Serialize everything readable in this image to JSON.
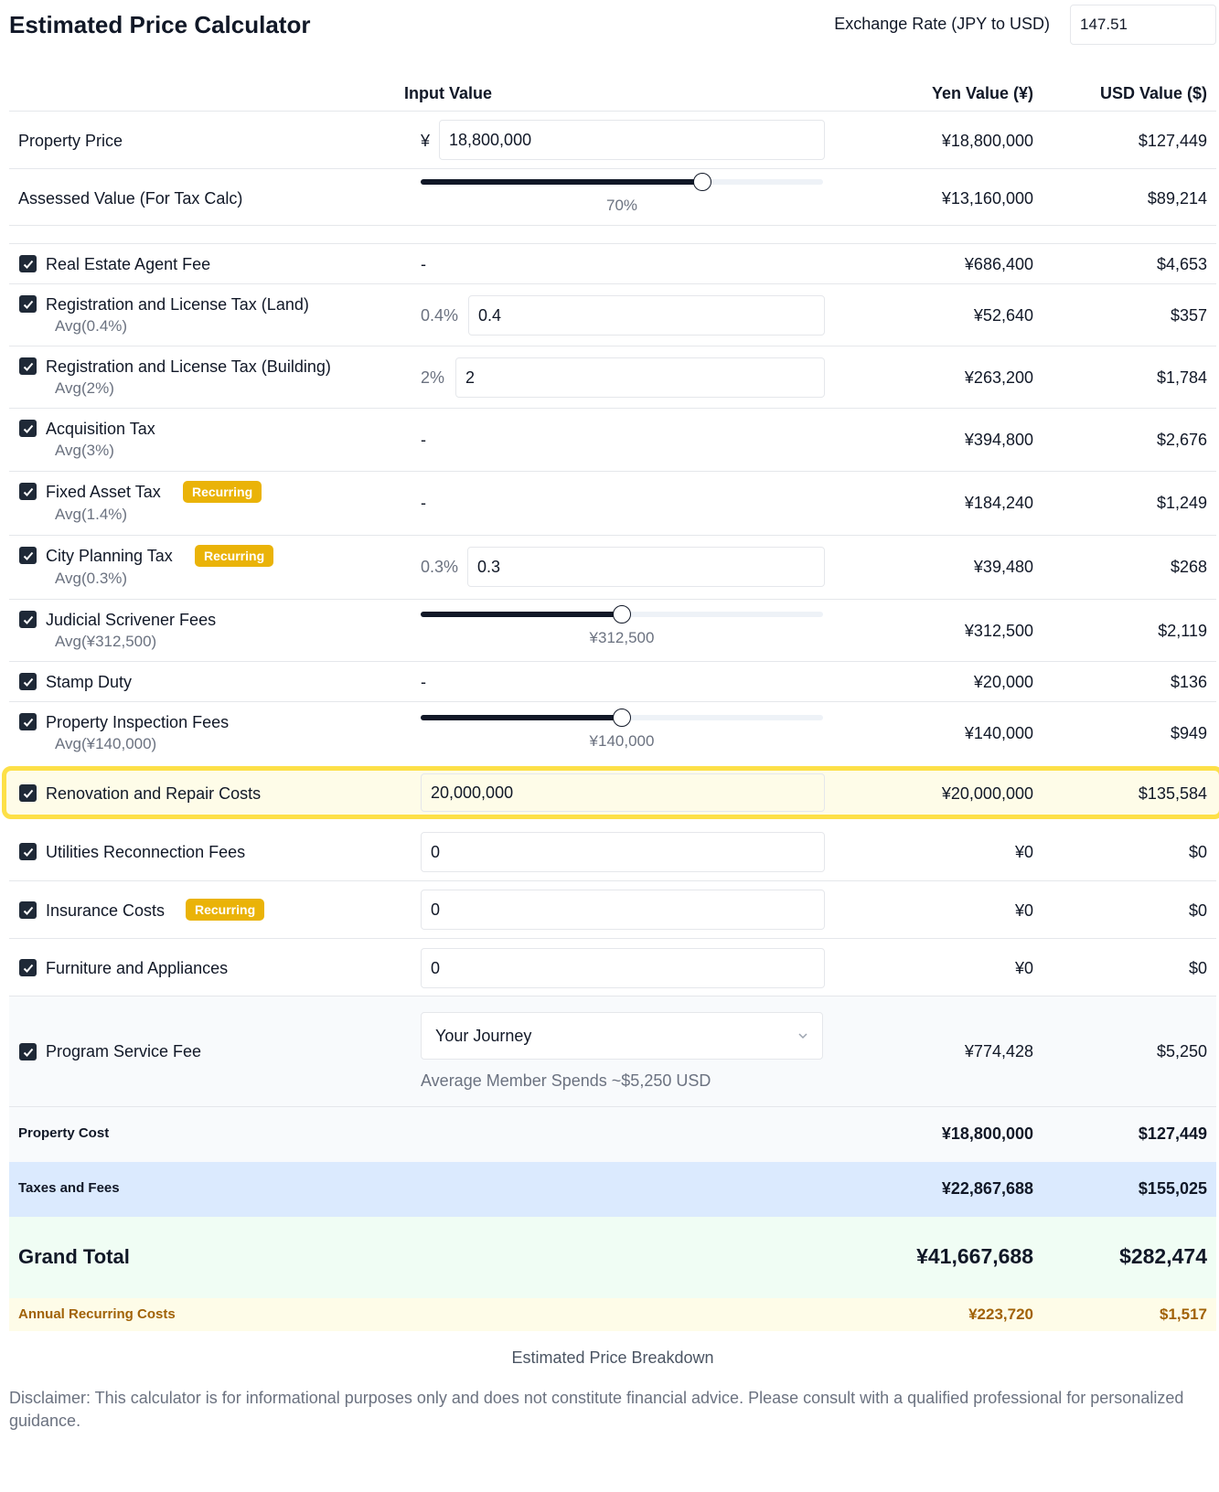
{
  "header": {
    "title": "Estimated Price Calculator",
    "exchange_label": "Exchange Rate (JPY to USD)",
    "exchange_value": "147.51"
  },
  "columns": {
    "input": "Input Value",
    "yen": "Yen Value (¥)",
    "usd": "USD Value ($)"
  },
  "property_price": {
    "label": "Property Price",
    "prefix": "¥",
    "input": "18,800,000",
    "yen": "¥18,800,000",
    "usd": "$127,449"
  },
  "assessed_value": {
    "label": "Assessed Value (For Tax Calc)",
    "slider_caption": "70%",
    "slider_fraction": 0.7,
    "yen": "¥13,160,000",
    "usd": "$89,214"
  },
  "items": {
    "agent_fee": {
      "label": "Real Estate Agent Fee",
      "input": "-",
      "yen": "¥686,400",
      "usd": "$4,653"
    },
    "reg_land": {
      "label": "Registration and License Tax (Land)",
      "avg": "Avg(0.4%)",
      "pct": "0.4%",
      "input": "0.4",
      "yen": "¥52,640",
      "usd": "$357"
    },
    "reg_building": {
      "label": "Registration and License Tax (Building)",
      "avg": "Avg(2%)",
      "pct": "2%",
      "input": "2",
      "yen": "¥263,200",
      "usd": "$1,784"
    },
    "acq_tax": {
      "label": "Acquisition Tax",
      "avg": "Avg(3%)",
      "input": "-",
      "yen": "¥394,800",
      "usd": "$2,676"
    },
    "fixed_asset": {
      "label": "Fixed Asset Tax",
      "badge": "Recurring",
      "avg": "Avg(1.4%)",
      "input": "-",
      "yen": "¥184,240",
      "usd": "$1,249"
    },
    "city_planning": {
      "label": "City Planning Tax",
      "badge": "Recurring",
      "avg": "Avg(0.3%)",
      "pct": "0.3%",
      "input": "0.3",
      "yen": "¥39,480",
      "usd": "$268"
    },
    "scrivener": {
      "label": "Judicial Scrivener Fees",
      "avg": "Avg(¥312,500)",
      "slider_caption": "¥312,500",
      "slider_fraction": 0.5,
      "yen": "¥312,500",
      "usd": "$2,119"
    },
    "stamp": {
      "label": "Stamp Duty",
      "input": "-",
      "yen": "¥20,000",
      "usd": "$136"
    },
    "inspection": {
      "label": "Property Inspection Fees",
      "avg": "Avg(¥140,000)",
      "slider_caption": "¥140,000",
      "slider_fraction": 0.5,
      "yen": "¥140,000",
      "usd": "$949"
    },
    "renovation": {
      "label": "Renovation and Repair Costs",
      "input": "20,000,000",
      "yen": "¥20,000,000",
      "usd": "$135,584"
    },
    "utilities": {
      "label": "Utilities Reconnection Fees",
      "input": "0",
      "yen": "¥0",
      "usd": "$0"
    },
    "insurance": {
      "label": "Insurance Costs",
      "badge": "Recurring",
      "input": "0",
      "yen": "¥0",
      "usd": "$0"
    },
    "furniture": {
      "label": "Furniture and Appliances",
      "input": "0",
      "yen": "¥0",
      "usd": "$0"
    },
    "program": {
      "label": "Program Service Fee",
      "select": "Your Journey",
      "note": "Average Member Spends ~$5,250 USD",
      "yen": "¥774,428",
      "usd": "$5,250"
    }
  },
  "summary": {
    "property_cost": {
      "label": "Property Cost",
      "yen": "¥18,800,000",
      "usd": "$127,449"
    },
    "taxes_fees": {
      "label": "Taxes and Fees",
      "yen": "¥22,867,688",
      "usd": "$155,025"
    },
    "grand_total": {
      "label": "Grand Total",
      "yen": "¥41,667,688",
      "usd": "$282,474"
    },
    "annual_recurring": {
      "label": "Annual Recurring Costs",
      "yen": "¥223,720",
      "usd": "$1,517"
    }
  },
  "chart_caption": "Estimated Price Breakdown",
  "disclaimer": "Disclaimer: This calculator is for informational purposes only and does not constitute financial advice. Please consult with a qualified professional for personalized guidance.",
  "colors": {
    "badge": "#eab308",
    "highlight_border": "#fde047",
    "taxes_bg": "#dbeafe",
    "grand_bg": "#f0fdf4",
    "annual_bg": "#fefce8",
    "annual_text": "#a16207"
  }
}
